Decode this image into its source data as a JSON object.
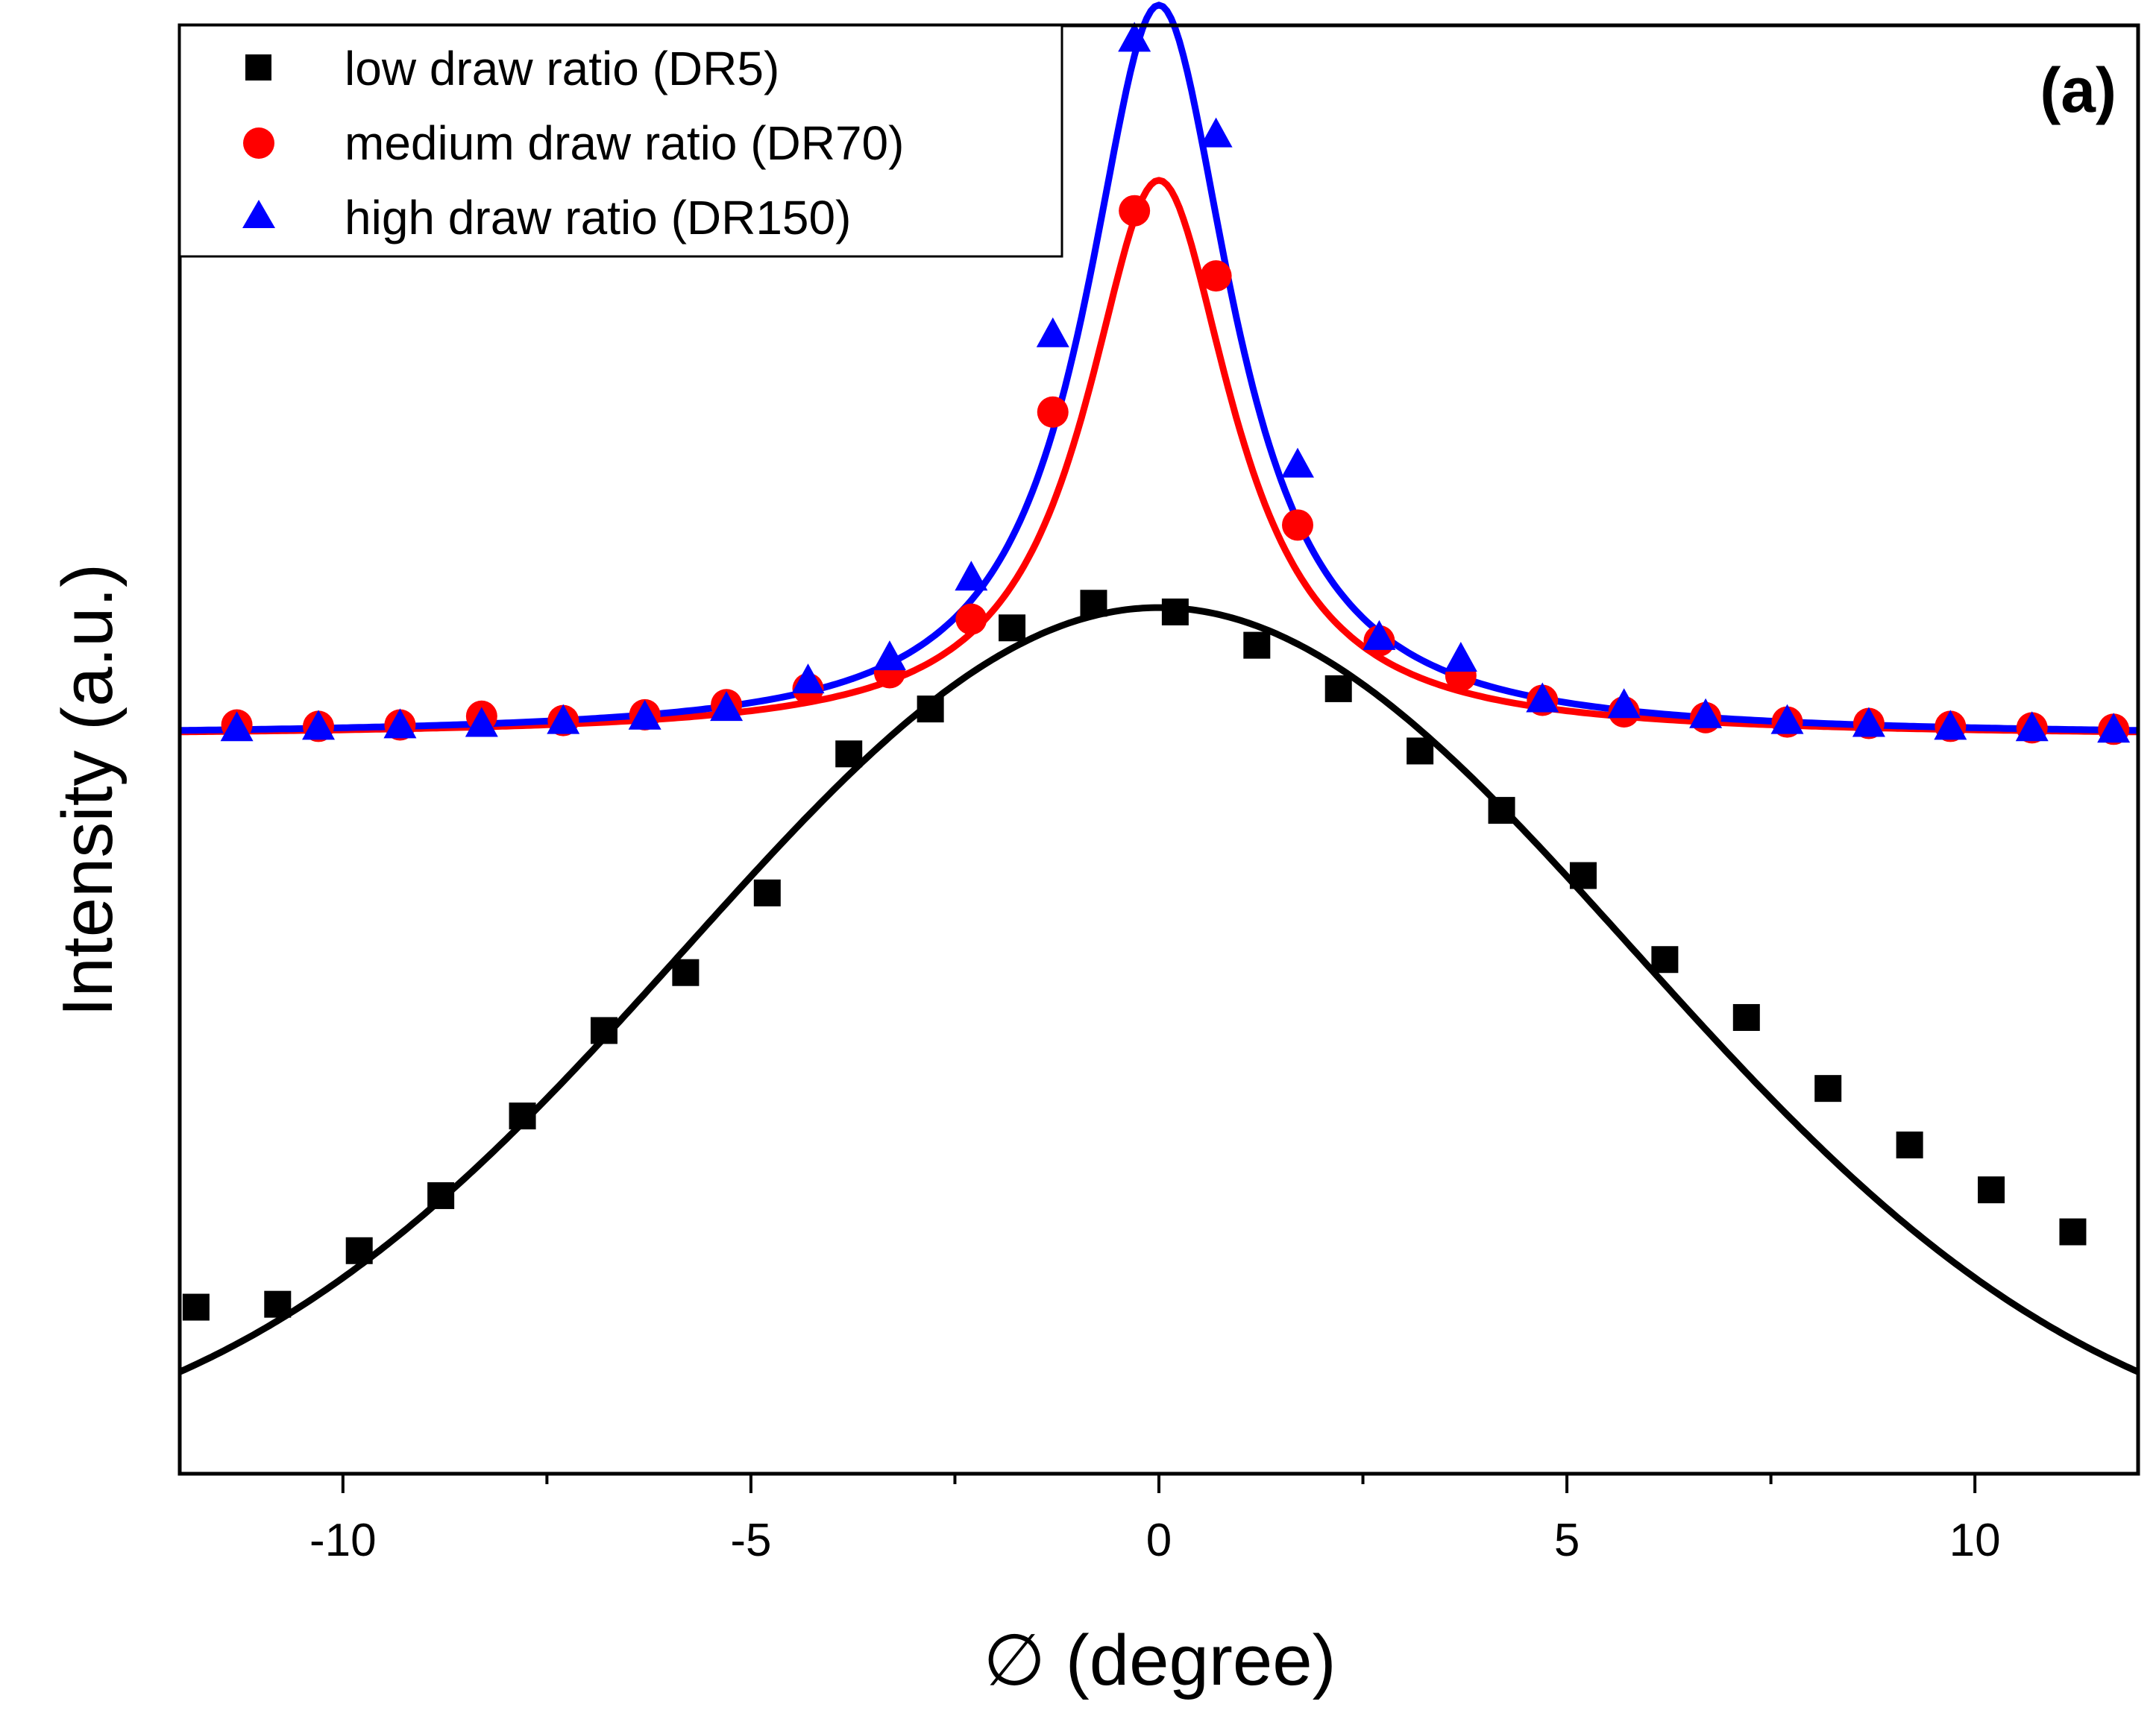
{
  "chart_data": {
    "type": "scatter",
    "panel_label": "(a)",
    "title": "",
    "xlabel": "∅ (degree)",
    "ylabel": "Intensity (a.u.)",
    "xlim": [
      -12,
      12
    ],
    "ylim": [
      0,
      100
    ],
    "xticks": [
      -10,
      -5,
      0,
      5,
      10
    ],
    "x_tick_labels": [
      "-10",
      "-5",
      "0",
      "5",
      "10"
    ],
    "y_tick_labels_shown": false,
    "legend_position": "top-left",
    "grid": false,
    "series": [
      {
        "name": "low draw ratio (DR5)",
        "marker": "square",
        "color": "#000000",
        "x": [
          -11.8,
          -10.8,
          -9.8,
          -8.8,
          -7.8,
          -6.8,
          -5.8,
          -4.8,
          -3.8,
          -2.8,
          -1.8,
          -0.8,
          0.2,
          1.2,
          2.2,
          3.2,
          4.2,
          5.2,
          6.2,
          7.2,
          8.2,
          9.2,
          10.2,
          11.2
        ],
        "y": [
          11.5,
          11.7,
          15.4,
          19.2,
          24.7,
          30.6,
          34.6,
          40.1,
          49.7,
          52.8,
          58.4,
          60.1,
          59.5,
          57.2,
          54.2,
          49.9,
          45.8,
          41.3,
          35.5,
          31.5,
          26.6,
          22.7,
          19.6,
          16.7
        ],
        "fit": {
          "model": "gaussian",
          "center": 0.0,
          "sigma": 5.8,
          "baseline": 0.0,
          "peak": 59.8
        }
      },
      {
        "name": "medium draw ratio (DR70)",
        "marker": "circle",
        "color": "#ff0000",
        "x": [
          -11.3,
          -10.3,
          -9.3,
          -8.3,
          -7.3,
          -6.3,
          -5.3,
          -4.3,
          -3.3,
          -2.3,
          -1.3,
          -0.3,
          0.7,
          1.7,
          2.7,
          3.7,
          4.7,
          5.7,
          6.7,
          7.7,
          8.7,
          9.7,
          10.7,
          11.7
        ],
        "y": [
          51.7,
          51.6,
          51.7,
          52.3,
          52.0,
          52.4,
          53.1,
          54.2,
          55.3,
          59.0,
          73.3,
          87.2,
          82.7,
          65.5,
          57.5,
          55.1,
          53.4,
          52.6,
          52.2,
          51.9,
          51.8,
          51.6,
          51.5,
          51.4
        ],
        "fit": {
          "model": "lorentzian",
          "center": 0.0,
          "fwhm": 2.2,
          "baseline": 50.9,
          "peak": 89.3
        }
      },
      {
        "name": "high draw ratio (DR150)",
        "marker": "triangle",
        "color": "#0000ff",
        "x": [
          -11.3,
          -10.3,
          -9.3,
          -8.3,
          -7.3,
          -6.3,
          -5.3,
          -4.3,
          -3.3,
          -2.3,
          -1.3,
          -0.3,
          0.7,
          1.7,
          2.7,
          3.7,
          4.7,
          5.7,
          6.7,
          7.7,
          8.7,
          9.7,
          10.7,
          11.7
        ],
        "y": [
          51.4,
          51.5,
          51.6,
          51.7,
          51.9,
          52.2,
          52.8,
          54.7,
          56.3,
          61.8,
          78.6,
          99.0,
          92.4,
          69.6,
          57.7,
          56.2,
          53.4,
          53.0,
          52.3,
          51.9,
          51.7,
          51.5,
          51.4,
          51.3
        ],
        "fit": {
          "model": "lorentzian",
          "center": 0.0,
          "fwhm": 2.2,
          "baseline": 50.9,
          "peak": 101.4
        }
      }
    ]
  }
}
